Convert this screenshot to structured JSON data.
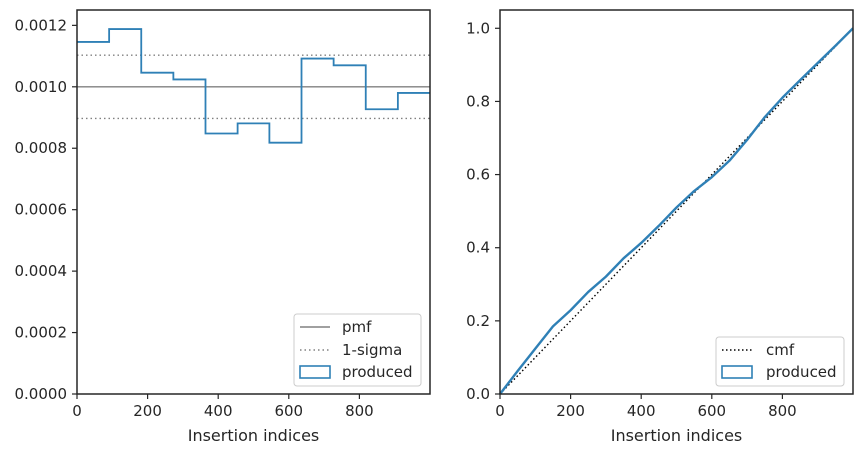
{
  "colors": {
    "produced": "#2f80b6",
    "pmf": "#808080",
    "sigma": "#808080",
    "cmf": "#000000",
    "axes": "#262626",
    "legend_border": "#cccccc"
  },
  "chart_data": [
    {
      "type": "line",
      "subtype": "step-histogram",
      "title": "",
      "xlabel": "Insertion indices",
      "ylabel": "",
      "xlim": [
        0,
        1000
      ],
      "ylim": [
        0,
        0.00125
      ],
      "x_ticks": [
        0,
        200,
        400,
        600,
        800
      ],
      "x_tick_labels": [
        "0",
        "200",
        "400",
        "600",
        "800"
      ],
      "y_ticks": [
        0,
        0.0002,
        0.0004,
        0.0006,
        0.0008,
        0.001,
        0.0012
      ],
      "y_tick_labels": [
        "0.0000",
        "0.0002",
        "0.0004",
        "0.0006",
        "0.0008",
        "0.0010",
        "0.0012"
      ],
      "grid": false,
      "legend_position": "lower-right",
      "legend": [
        "pmf",
        "1-sigma",
        "produced"
      ],
      "series": [
        {
          "name": "pmf",
          "style": "solid",
          "y": 0.001
        },
        {
          "name": "1-sigma",
          "style": "dotted",
          "y": [
            0.000897,
            0.001103
          ]
        },
        {
          "name": "produced",
          "style": "step",
          "bin_edges": [
            0,
            91,
            182,
            273,
            364,
            455,
            545,
            636,
            727,
            818,
            909,
            1000
          ],
          "values": [
            0.001146,
            0.001188,
            0.001046,
            0.001024,
            0.000848,
            0.000881,
            0.000818,
            0.001092,
            0.00107,
            0.000927,
            0.00098
          ]
        }
      ]
    },
    {
      "type": "line",
      "title": "",
      "xlabel": "Insertion indices",
      "ylabel": "",
      "xlim": [
        0,
        1000
      ],
      "ylim": [
        0,
        1.05
      ],
      "x_ticks": [
        0,
        200,
        400,
        600,
        800
      ],
      "x_tick_labels": [
        "0",
        "200",
        "400",
        "600",
        "800"
      ],
      "y_ticks": [
        0,
        0.2,
        0.4,
        0.6,
        0.8,
        1.0
      ],
      "y_tick_labels": [
        "0.0",
        "0.2",
        "0.4",
        "0.6",
        "0.8",
        "1.0"
      ],
      "grid": false,
      "legend_position": "lower-right",
      "legend": [
        "cmf",
        "produced"
      ],
      "series": [
        {
          "name": "cmf",
          "style": "dotted",
          "x": [
            0,
            1000
          ],
          "y": [
            0,
            1
          ]
        },
        {
          "name": "produced",
          "style": "solid",
          "x": [
            0,
            50,
            100,
            150,
            200,
            250,
            300,
            350,
            400,
            450,
            500,
            550,
            600,
            650,
            700,
            750,
            800,
            850,
            900,
            950,
            1000
          ],
          "y": [
            0,
            0.063,
            0.124,
            0.185,
            0.229,
            0.279,
            0.321,
            0.371,
            0.413,
            0.46,
            0.51,
            0.555,
            0.593,
            0.638,
            0.695,
            0.757,
            0.81,
            0.858,
            0.905,
            0.952,
            1.0
          ]
        }
      ]
    }
  ]
}
